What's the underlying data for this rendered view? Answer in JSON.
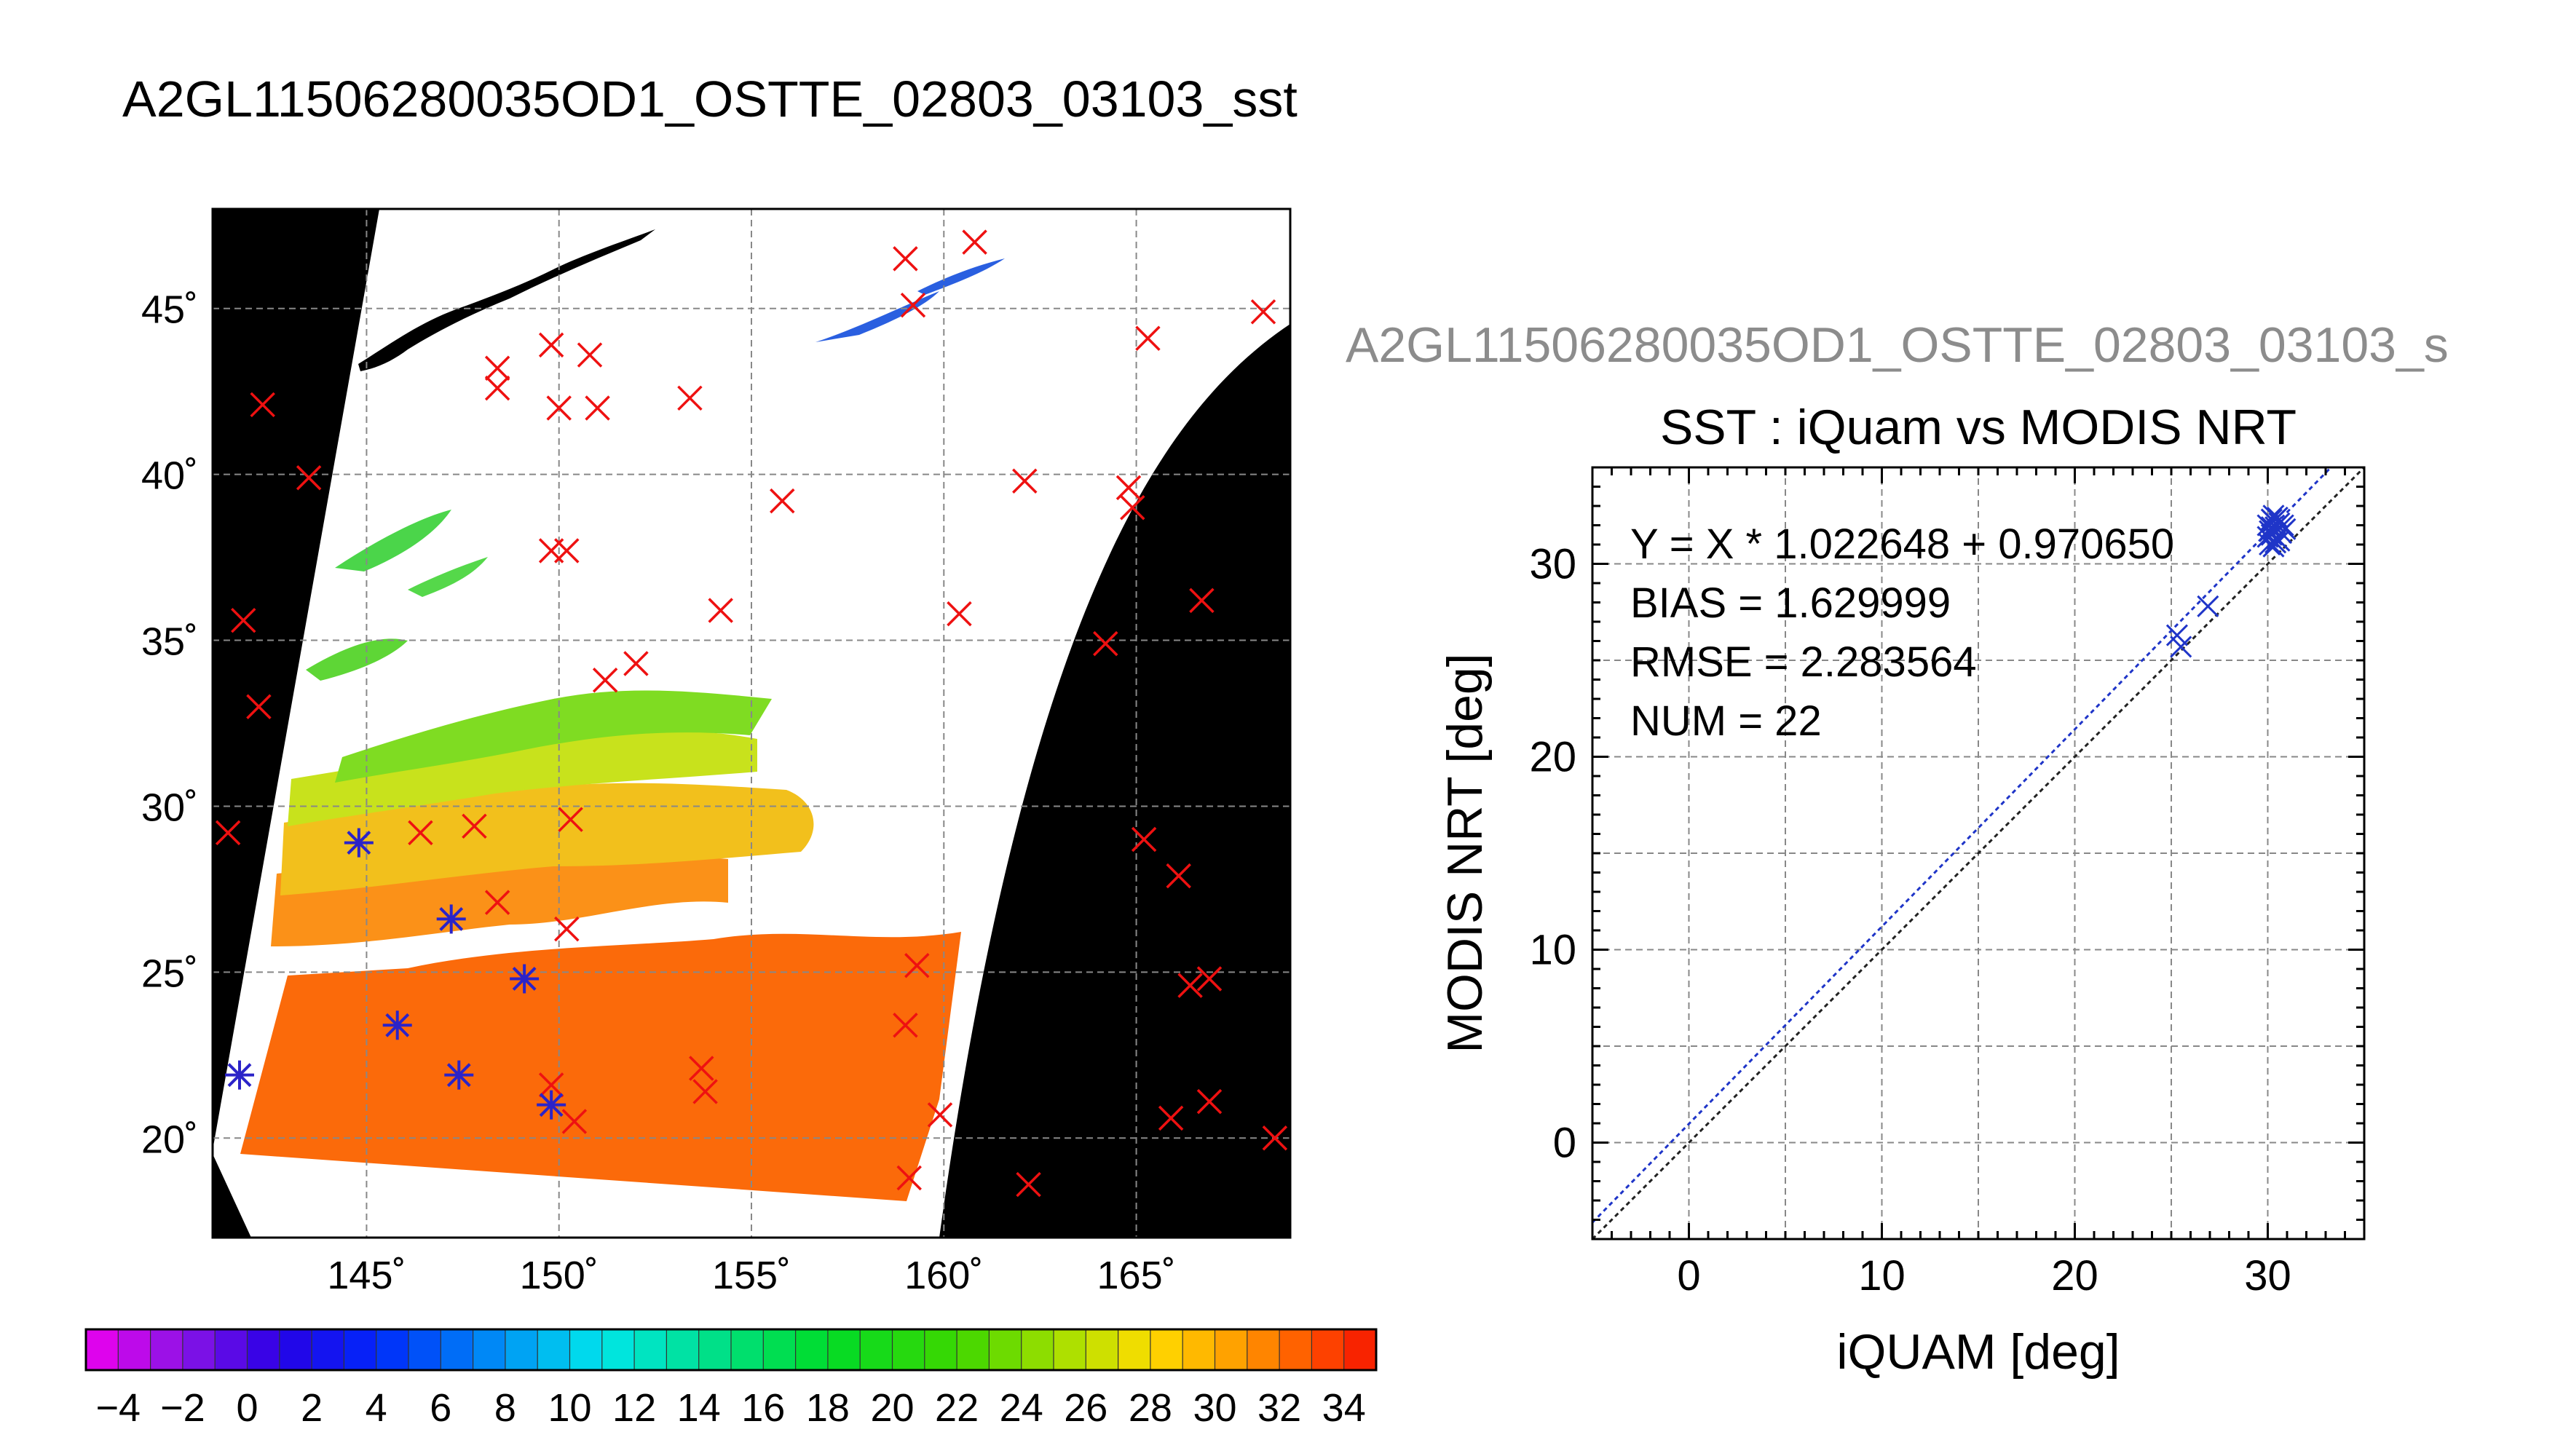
{
  "page_title": "A2GL11506280035OD1_OSTTE_02803_03103_sst",
  "scatter_subtitle": "A2GL11506280035OD1_OSTTE_02803_03103_s",
  "chart_data": [
    {
      "type": "map",
      "lon_ticks": [
        145,
        150,
        155,
        160,
        165
      ],
      "lat_ticks": [
        20,
        25,
        30,
        35,
        40,
        45
      ],
      "lon_labels": [
        "145˚",
        "150˚",
        "155˚",
        "160˚",
        "165˚"
      ],
      "lat_labels": [
        "20˚",
        "25˚",
        "30˚",
        "35˚",
        "40˚",
        "45˚"
      ],
      "xlim": [
        141,
        169
      ],
      "ylim": [
        17,
        48
      ],
      "grid": true,
      "markers_red_x": [
        [
          159.0,
          46.5
        ],
        [
          160.8,
          47.0
        ],
        [
          159.2,
          45.1
        ],
        [
          168.3,
          44.9
        ],
        [
          165.3,
          44.1
        ],
        [
          148.4,
          43.2
        ],
        [
          148.4,
          42.6
        ],
        [
          149.8,
          43.9
        ],
        [
          150.8,
          43.6
        ],
        [
          153.4,
          42.3
        ],
        [
          142.3,
          42.1
        ],
        [
          150.0,
          42.0
        ],
        [
          151.0,
          42.0
        ],
        [
          143.5,
          39.9
        ],
        [
          155.8,
          39.2
        ],
        [
          162.1,
          39.8
        ],
        [
          164.8,
          39.6
        ],
        [
          164.9,
          39.0
        ],
        [
          149.8,
          37.7
        ],
        [
          150.2,
          37.7
        ],
        [
          166.7,
          36.2
        ],
        [
          141.8,
          35.6
        ],
        [
          154.2,
          35.9
        ],
        [
          160.4,
          35.8
        ],
        [
          164.2,
          34.9
        ],
        [
          151.2,
          33.8
        ],
        [
          152.0,
          34.3
        ],
        [
          142.2,
          33.0
        ],
        [
          141.4,
          29.2
        ],
        [
          150.3,
          29.6
        ],
        [
          147.8,
          29.4
        ],
        [
          146.4,
          29.2
        ],
        [
          165.2,
          29.0
        ],
        [
          166.1,
          27.9
        ],
        [
          148.4,
          27.1
        ],
        [
          150.2,
          26.3
        ],
        [
          159.3,
          25.2
        ],
        [
          166.4,
          24.6
        ],
        [
          166.9,
          24.8
        ],
        [
          159.0,
          23.4
        ],
        [
          153.7,
          22.1
        ],
        [
          153.8,
          21.4
        ],
        [
          149.8,
          21.6
        ],
        [
          150.4,
          20.5
        ],
        [
          159.9,
          20.7
        ],
        [
          165.9,
          20.6
        ],
        [
          166.9,
          21.1
        ],
        [
          168.6,
          20.0
        ],
        [
          159.1,
          18.8
        ],
        [
          162.2,
          18.6
        ]
      ],
      "markers_blue_star": [
        [
          144.8,
          28.9
        ],
        [
          147.2,
          26.6
        ],
        [
          149.1,
          24.8
        ],
        [
          145.8,
          23.4
        ],
        [
          141.7,
          21.9
        ],
        [
          147.4,
          21.9
        ],
        [
          149.8,
          21.0
        ]
      ]
    },
    {
      "type": "colorbar",
      "range": [
        -5,
        35
      ],
      "tick_labels": [
        "−4",
        "−2",
        "0",
        "2",
        "4",
        "6",
        "8",
        "10",
        "12",
        "14",
        "16",
        "18",
        "20",
        "22",
        "24",
        "26",
        "28",
        "30",
        "32",
        "34"
      ],
      "tick_values": [
        -4,
        -2,
        0,
        2,
        4,
        6,
        8,
        10,
        12,
        14,
        16,
        18,
        20,
        22,
        24,
        26,
        28,
        30,
        32,
        34
      ]
    },
    {
      "type": "scatter",
      "title": "SST : iQuam vs MODIS NRT",
      "xlabel": "iQUAM [deg]",
      "ylabel": "MODIS NRT [deg]",
      "xlim": [
        -5,
        35
      ],
      "ylim": [
        -5,
        35
      ],
      "xticks": [
        0,
        10,
        20,
        30
      ],
      "yticks": [
        0,
        10,
        20,
        30
      ],
      "xtick_labels": [
        "0",
        "10",
        "20",
        "30"
      ],
      "ytick_labels": [
        "0",
        "10",
        "20",
        "30"
      ],
      "grid": true,
      "annotations": [
        "Y = X * 1.022648 + 0.970650",
        "BIAS = 1.629999",
        "RMSE = 2.283564",
        "NUM = 22"
      ],
      "fit": {
        "slope": 1.022648,
        "intercept": 0.97065
      },
      "points": [
        [
          25.3,
          26.3
        ],
        [
          25.5,
          25.7
        ],
        [
          26.9,
          27.8
        ],
        [
          30.0,
          32.0
        ],
        [
          30.1,
          31.7
        ],
        [
          30.2,
          31.5
        ],
        [
          30.3,
          32.2
        ],
        [
          30.4,
          31.9
        ],
        [
          30.5,
          31.3
        ],
        [
          30.6,
          32.1
        ],
        [
          30.1,
          31.0
        ],
        [
          30.3,
          30.9
        ],
        [
          30.7,
          31.6
        ],
        [
          30.2,
          32.3
        ],
        [
          30.5,
          32.4
        ],
        [
          30.6,
          31.2
        ],
        [
          30.8,
          32.0
        ],
        [
          30.0,
          31.4
        ],
        [
          30.4,
          31.1
        ],
        [
          30.9,
          31.8
        ],
        [
          30.3,
          32.5
        ],
        [
          30.2,
          31.9
        ]
      ]
    }
  ]
}
